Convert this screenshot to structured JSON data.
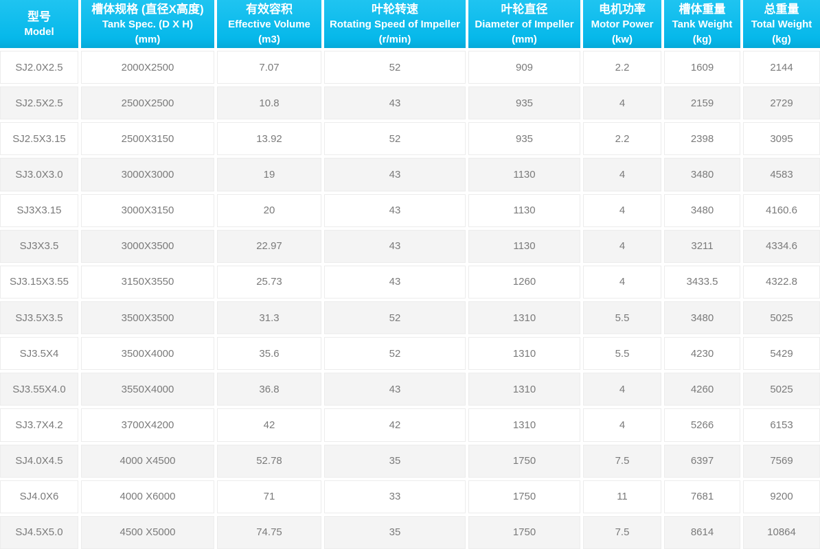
{
  "chart_data": {
    "type": "table",
    "title": "",
    "columns": [
      {
        "key": "model",
        "zh": "型号",
        "en": "Model",
        "unit": ""
      },
      {
        "key": "tank-spec",
        "zh": "槽体规格 (直径X高度)",
        "en": "Tank Spec. (D X H)",
        "unit": "(mm)"
      },
      {
        "key": "effective-volume",
        "zh": "有效容积",
        "en": "Effective Volume",
        "unit": "(m3)"
      },
      {
        "key": "rotating-speed",
        "zh": "叶轮转速",
        "en": "Rotating Speed of Impeller",
        "unit": "(r/min)"
      },
      {
        "key": "impeller-diameter",
        "zh": "叶轮直径",
        "en": "Diameter of Impeller",
        "unit": "(mm)"
      },
      {
        "key": "motor-power",
        "zh": "电机功率",
        "en": "Motor Power",
        "unit": "(kw)"
      },
      {
        "key": "tank-weight",
        "zh": "槽体重量",
        "en": "Tank Weight",
        "unit": "(kg)"
      },
      {
        "key": "total-weight",
        "zh": "总重量",
        "en": "Total Weight",
        "unit": "(kg)"
      }
    ],
    "rows": [
      [
        "SJ2.0X2.5",
        "2000X2500",
        "7.07",
        "52",
        "909",
        "2.2",
        "1609",
        "2144"
      ],
      [
        "SJ2.5X2.5",
        "2500X2500",
        "10.8",
        "43",
        "935",
        "4",
        "2159",
        "2729"
      ],
      [
        "SJ2.5X3.15",
        "2500X3150",
        "13.92",
        "52",
        "935",
        "2.2",
        "2398",
        "3095"
      ],
      [
        "SJ3.0X3.0",
        "3000X3000",
        "19",
        "43",
        "1130",
        "4",
        "3480",
        "4583"
      ],
      [
        "SJ3X3.15",
        "3000X3150",
        "20",
        "43",
        "1130",
        "4",
        "3480",
        "4160.6"
      ],
      [
        "SJ3X3.5",
        "3000X3500",
        "22.97",
        "43",
        "1130",
        "4",
        "3211",
        "4334.6"
      ],
      [
        "SJ3.15X3.55",
        "3150X3550",
        "25.73",
        "43",
        "1260",
        "4",
        "3433.5",
        "4322.8"
      ],
      [
        "SJ3.5X3.5",
        "3500X3500",
        "31.3",
        "52",
        "1310",
        "5.5",
        "3480",
        "5025"
      ],
      [
        "SJ3.5X4",
        "3500X4000",
        "35.6",
        "52",
        "1310",
        "5.5",
        "4230",
        "5429"
      ],
      [
        "SJ3.55X4.0",
        "3550X4000",
        "36.8",
        "43",
        "1310",
        "4",
        "4260",
        "5025"
      ],
      [
        "SJ3.7X4.2",
        "3700X4200",
        "42",
        "42",
        "1310",
        "4",
        "5266",
        "6153"
      ],
      [
        "SJ4.0X4.5",
        "4000 X4500",
        "52.78",
        "35",
        "1750",
        "7.5",
        "6397",
        "7569"
      ],
      [
        "SJ4.0X6",
        "4000 X6000",
        "71",
        "33",
        "1750",
        "11",
        "7681",
        "9200"
      ],
      [
        "SJ4.5X5.0",
        "4500 X5000",
        "74.75",
        "35",
        "1750",
        "7.5",
        "8614",
        "10864"
      ]
    ],
    "layout": {
      "grid": "off",
      "legend": "none",
      "header_lines": [
        "chinese",
        "english",
        "unit"
      ],
      "row_striping": "odd-white-even-gray"
    }
  },
  "colors": {
    "header-top": "#1fc4f1",
    "header-mid": "#06b8ea",
    "header-bottom": "#05aad9",
    "header-text": "#ffffff",
    "row-bg": "#ffffff",
    "row-alt": "#f4f4f4",
    "cell-border": "#ececec",
    "cell-text": "#7a7a7a"
  }
}
